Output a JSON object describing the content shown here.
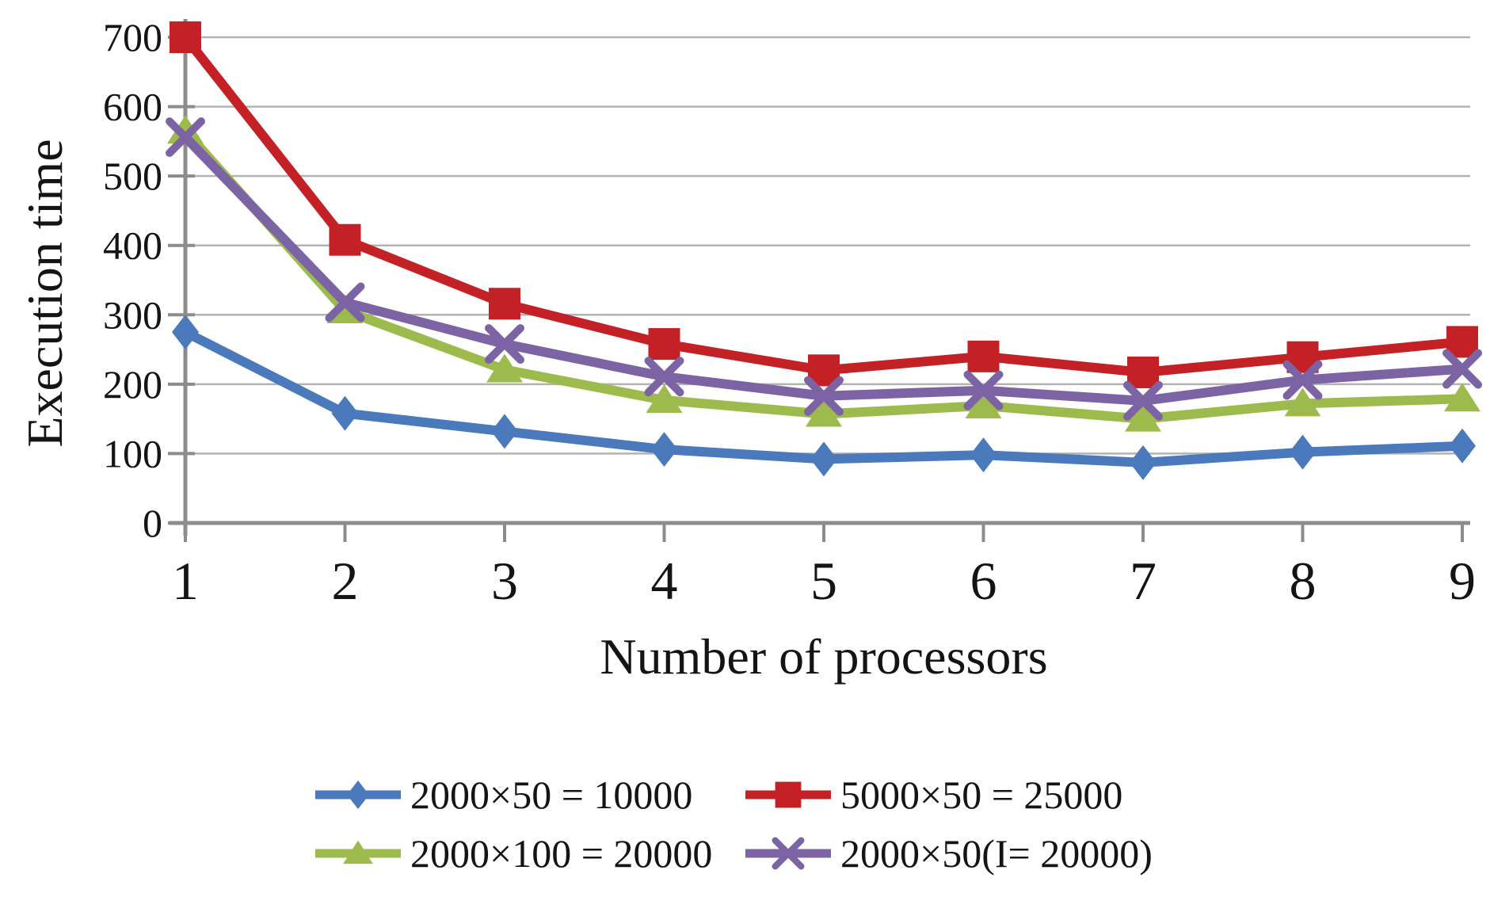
{
  "chart_data": {
    "type": "line",
    "title": "",
    "xlabel": "Number of processors",
    "ylabel": "Execution time",
    "x": [
      1,
      2,
      3,
      4,
      5,
      6,
      7,
      8,
      9
    ],
    "x_tick_labels": [
      "1",
      "2",
      "3",
      "4",
      "5",
      "6",
      "7",
      "8",
      "9"
    ],
    "y_ticks": [
      0,
      100,
      200,
      300,
      400,
      500,
      600,
      700
    ],
    "ylim": [
      0,
      700
    ],
    "grid": "horizontal",
    "legend_position": "bottom",
    "series": [
      {
        "name": "2000×50 = 10000",
        "color": "#4A79BC",
        "marker": "diamond",
        "values": [
          275,
          158,
          132,
          106,
          92,
          98,
          87,
          102,
          111
        ]
      },
      {
        "name": "5000×50 = 25000",
        "color": "#C32126",
        "marker": "square",
        "values": [
          700,
          408,
          316,
          258,
          220,
          240,
          217,
          239,
          261
        ]
      },
      {
        "name": "2000×100 = 20000",
        "color": "#9DBB4D",
        "marker": "triangle",
        "values": [
          565,
          306,
          221,
          177,
          157,
          169,
          150,
          172,
          179
        ]
      },
      {
        "name": "2000×50(I= 20000)",
        "color": "#7C64A4",
        "marker": "x",
        "values": [
          556,
          318,
          258,
          211,
          183,
          191,
          176,
          206,
          222
        ]
      }
    ]
  },
  "colors": {
    "background": "#FFFFFF",
    "gridline": "#B3B3B3",
    "axis": "#8C8C8C",
    "text": "#141414"
  }
}
